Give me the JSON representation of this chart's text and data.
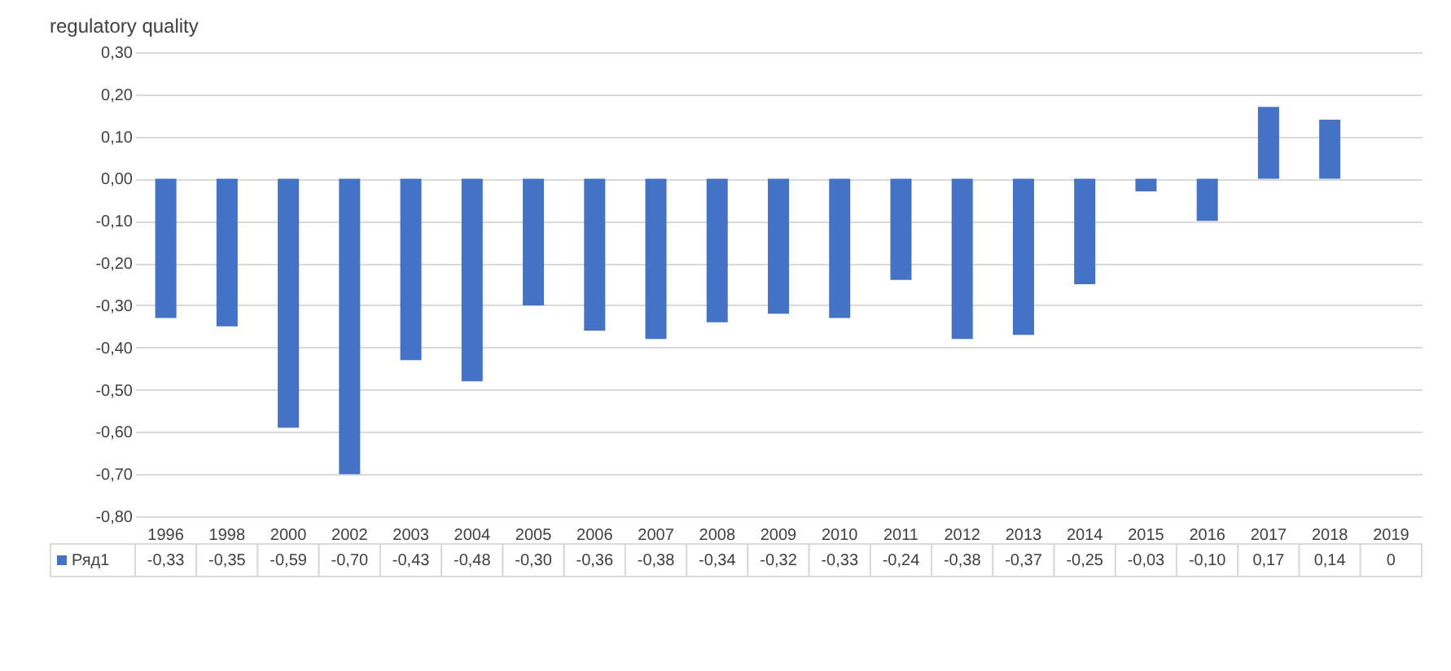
{
  "chart_data": {
    "type": "bar",
    "title": "regulatory quality",
    "categories": [
      "1996",
      "1998",
      "2000",
      "2002",
      "2003",
      "2004",
      "2005",
      "2006",
      "2007",
      "2008",
      "2009",
      "2010",
      "2011",
      "2012",
      "2013",
      "2014",
      "2015",
      "2016",
      "2017",
      "2018",
      "2019"
    ],
    "series": [
      {
        "name": "Ряд1",
        "color": "#4472c4",
        "values": [
          -0.33,
          -0.35,
          -0.59,
          -0.7,
          -0.43,
          -0.48,
          -0.3,
          -0.36,
          -0.38,
          -0.34,
          -0.32,
          -0.33,
          -0.24,
          -0.38,
          -0.37,
          -0.25,
          -0.03,
          -0.1,
          0.17,
          0.14,
          0
        ],
        "value_labels": [
          "-0,33",
          "-0,35",
          "-0,59",
          "-0,70",
          "-0,43",
          "-0,48",
          "-0,30",
          "-0,36",
          "-0,38",
          "-0,34",
          "-0,32",
          "-0,33",
          "-0,24",
          "-0,38",
          "-0,37",
          "-0,25",
          "-0,03",
          "-0,10",
          "0,17",
          "0,14",
          "0"
        ]
      }
    ],
    "ylim": [
      -0.8,
      0.3
    ],
    "yticks": [
      {
        "value": -0.8,
        "label": "-0,80"
      },
      {
        "value": -0.7,
        "label": "-0,70"
      },
      {
        "value": -0.6,
        "label": "-0,60"
      },
      {
        "value": -0.5,
        "label": "-0,50"
      },
      {
        "value": -0.4,
        "label": "-0,40"
      },
      {
        "value": -0.3,
        "label": "-0,30"
      },
      {
        "value": -0.2,
        "label": "-0,20"
      },
      {
        "value": -0.1,
        "label": "-0,10"
      },
      {
        "value": 0,
        "label": "0,00"
      },
      {
        "value": 0.1,
        "label": "0,10"
      },
      {
        "value": 0.2,
        "label": "0,20"
      },
      {
        "value": 0.3,
        "label": "0,30"
      }
    ],
    "grid": "y",
    "legend": "bottom"
  }
}
